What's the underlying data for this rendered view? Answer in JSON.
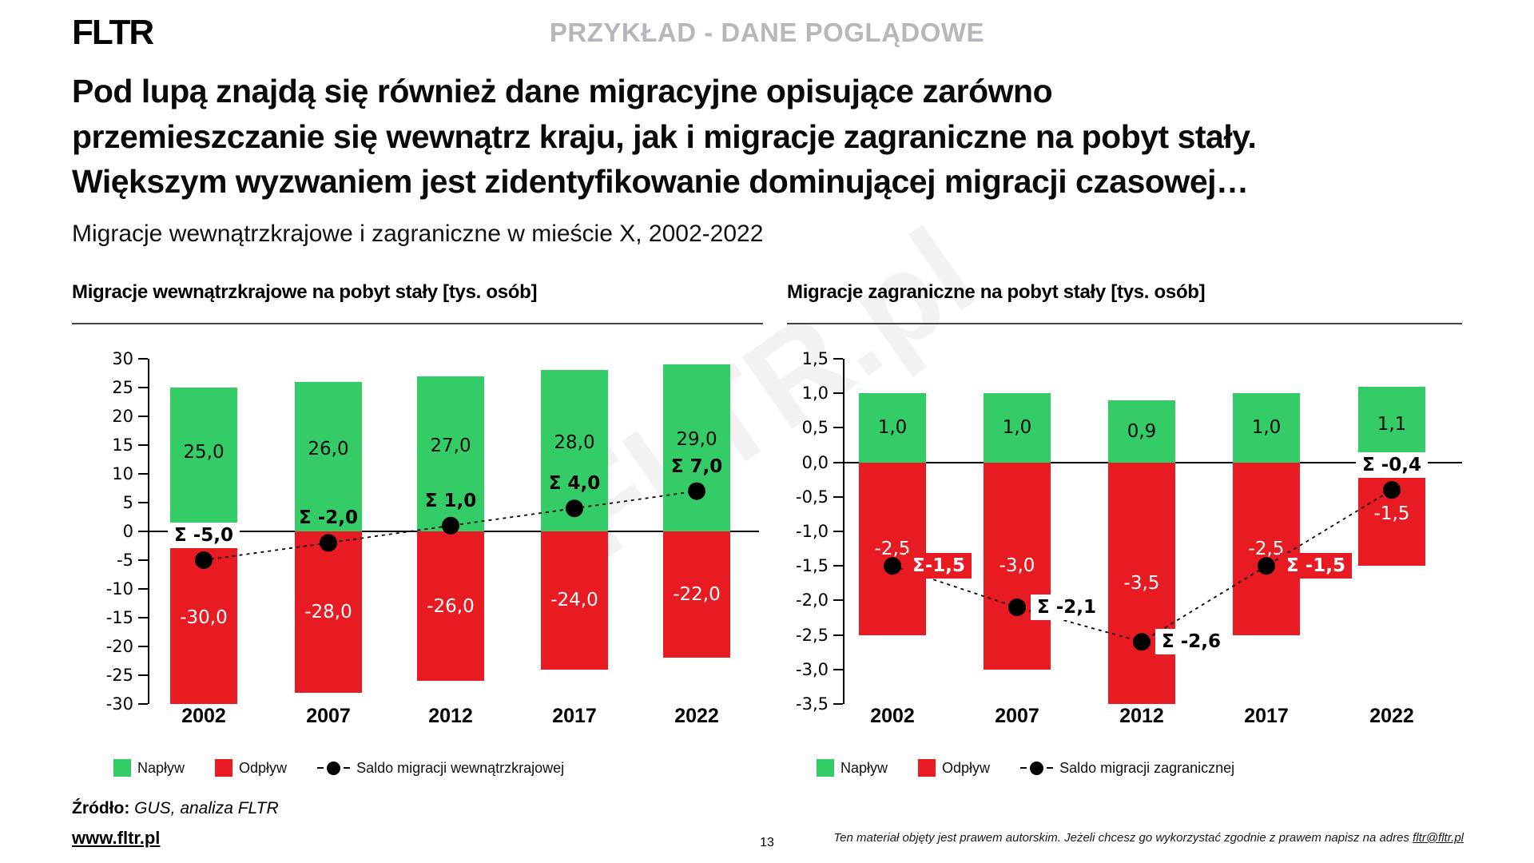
{
  "slide": {
    "logo": "FLTR",
    "badge": "PRZYKŁAD - DANE POGLĄDOWE",
    "title_line1": "Pod lupą znajdą się również dane migracyjne opisujące zarówno",
    "title_line2": "przemieszczanie się wewnątrz kraju, jak i migracje zagraniczne na pobyt stały.",
    "title_line3": "Większym wyzwaniem jest zidentyfikowanie dominującej migracji czasowej…",
    "subtitle": "Migracje wewnątrzkrajowe i zagraniczne w mieście X, 2002-2022",
    "watermark": "FLTR.pl",
    "page_number": "13",
    "source_label": "Źródło:",
    "source_text": " GUS, analiza FLTR",
    "website": "www.fltr.pl",
    "disclaimer_text": "Ten materiał objęty jest prawem autorskim. Jeżeli chcesz go wykorzystać zgodnie z prawem napisz na adres ",
    "disclaimer_link": "fltr@fltr.pl"
  },
  "colors": {
    "inflow": "#33cc66",
    "outflow": "#e81b23",
    "saldo": "#000000",
    "badge_gray": "#b4b8bd"
  },
  "chart_data": [
    {
      "type": "bar",
      "title": "Migracje wewnątrzkrajowe na pobyt stały [tys. osób]",
      "categories": [
        "2002",
        "2007",
        "2012",
        "2017",
        "2022"
      ],
      "series": [
        {
          "name": "Napływ",
          "role": "inflow",
          "values": [
            25.0,
            26.0,
            27.0,
            28.0,
            29.0
          ],
          "labels": [
            "25,0",
            "26,0",
            "27,0",
            "28,0",
            "29,0"
          ]
        },
        {
          "name": "Odpływ",
          "role": "outflow",
          "values": [
            -30.0,
            -28.0,
            -26.0,
            -24.0,
            -22.0
          ],
          "labels": [
            "-30,0",
            "-28,0",
            "-26,0",
            "-24,0",
            "-22,0"
          ]
        },
        {
          "name": "Saldo migracji wewnątrzkrajowej",
          "role": "saldo",
          "values": [
            -5.0,
            -2.0,
            1.0,
            4.0,
            7.0
          ],
          "labels": [
            "Σ -5,0",
            "Σ -2,0",
            "Σ 1,0",
            "Σ 4,0",
            "Σ 7,0"
          ],
          "label_styles": [
            "white-box",
            "plain",
            "plain",
            "plain",
            "plain"
          ],
          "label_pos": [
            "above",
            "above",
            "above",
            "above",
            "above"
          ]
        }
      ],
      "ylim": [
        -30,
        30
      ],
      "ytick_labels": [
        "30",
        "25",
        "20",
        "15",
        "10",
        "5",
        "0",
        "-5",
        "-10",
        "-15",
        "-20",
        "-25",
        "-30"
      ],
      "xlabel": "",
      "ylabel": "",
      "grid": false,
      "legend_position": "bottom"
    },
    {
      "type": "bar",
      "title": "Migracje zagraniczne na pobyt stały [tys. osób]",
      "categories": [
        "2002",
        "2007",
        "2012",
        "2017",
        "2022"
      ],
      "series": [
        {
          "name": "Napływ",
          "role": "inflow",
          "values": [
            1.0,
            1.0,
            0.9,
            1.0,
            1.1
          ],
          "labels": [
            "1,0",
            "1,0",
            "0,9",
            "1,0",
            "1,1"
          ]
        },
        {
          "name": "Odpływ",
          "role": "outflow",
          "values": [
            -2.5,
            -3.0,
            -3.5,
            -2.5,
            -1.5
          ],
          "labels": [
            "-2,5",
            "-3,0",
            "-3,5",
            "-2,5",
            "-1,5"
          ]
        },
        {
          "name": "Saldo migracji zagranicznej",
          "role": "saldo",
          "values": [
            -1.5,
            -2.1,
            -2.6,
            -1.5,
            -0.4
          ],
          "labels": [
            "Σ-1,5",
            "Σ -2,1",
            "Σ -2,6",
            "Σ -1,5",
            "Σ -0,4"
          ],
          "label_styles": [
            "red-box",
            "white-box",
            "white-box",
            "red-box",
            "white-box"
          ],
          "label_pos": [
            "right",
            "right",
            "right",
            "right",
            "above"
          ]
        }
      ],
      "ylim": [
        -3.5,
        1.5
      ],
      "ytick_labels": [
        "1,5",
        "1,0",
        "0,5",
        "0,0",
        "-0,5",
        "-1,0",
        "-1,5",
        "-2,0",
        "-2,5",
        "-3,0",
        "-3,5"
      ],
      "xlabel": "",
      "ylabel": "",
      "grid": false,
      "legend_position": "bottom"
    }
  ]
}
